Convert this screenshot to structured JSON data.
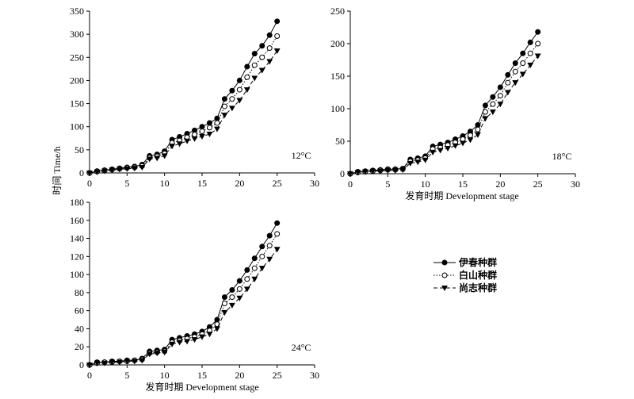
{
  "figure": {
    "ylabel": "时间 Time/h",
    "xlabel": "发育时期 Development stage"
  },
  "legend": [
    {
      "name": "伊春种群",
      "marker": "filled-circle",
      "line": "solid"
    },
    {
      "name": "白山种群",
      "marker": "open-circle",
      "line": "dotted"
    },
    {
      "name": "尚志种群",
      "marker": "filled-triangle-down",
      "line": "dashed"
    }
  ],
  "chart_data": [
    {
      "type": "line",
      "temperature_label": "12°C",
      "xlabel": "",
      "xlim": [
        0,
        30
      ],
      "xticks": [
        0,
        5,
        10,
        15,
        20,
        25,
        30
      ],
      "ylim": [
        0,
        350
      ],
      "yticks": [
        0,
        50,
        100,
        150,
        200,
        250,
        300,
        350
      ],
      "x": [
        0,
        1,
        2,
        3,
        4,
        5,
        6,
        7,
        8,
        9,
        10,
        11,
        12,
        13,
        14,
        15,
        16,
        17,
        18,
        19,
        20,
        21,
        22,
        23,
        24,
        25
      ],
      "series": [
        {
          "name": "伊春种群",
          "values": [
            0,
            4,
            6,
            8,
            10,
            12,
            14,
            18,
            37,
            40,
            47,
            72,
            78,
            85,
            92,
            100,
            108,
            118,
            160,
            178,
            200,
            230,
            258,
            275,
            298,
            328
          ]
        },
        {
          "name": "白山种群",
          "values": [
            0,
            3,
            5,
            7,
            9,
            11,
            12,
            15,
            33,
            36,
            42,
            65,
            70,
            77,
            83,
            90,
            98,
            108,
            144,
            160,
            180,
            207,
            233,
            250,
            270,
            296
          ]
        },
        {
          "name": "尚志种群",
          "values": [
            0,
            2,
            4,
            6,
            8,
            9,
            10,
            12,
            30,
            32,
            37,
            58,
            63,
            69,
            74,
            79,
            84,
            95,
            125,
            140,
            157,
            180,
            205,
            222,
            241,
            264
          ]
        }
      ]
    },
    {
      "type": "line",
      "temperature_label": "18°C",
      "xlabel": "发育时期 Development stage",
      "xlim": [
        0,
        30
      ],
      "xticks": [
        0,
        5,
        10,
        15,
        20,
        25,
        30
      ],
      "ylim": [
        0,
        250
      ],
      "yticks": [
        0,
        50,
        100,
        150,
        200,
        250
      ],
      "x": [
        0,
        1,
        2,
        3,
        4,
        5,
        6,
        7,
        8,
        9,
        10,
        11,
        12,
        13,
        14,
        15,
        16,
        17,
        18,
        19,
        20,
        21,
        22,
        23,
        24,
        25
      ],
      "series": [
        {
          "name": "伊春种群",
          "values": [
            0,
            3,
            4,
            5,
            6,
            7,
            7,
            8,
            22,
            24,
            27,
            42,
            45,
            48,
            53,
            58,
            65,
            75,
            105,
            118,
            133,
            152,
            170,
            185,
            202,
            218
          ]
        },
        {
          "name": "白山种群",
          "values": [
            0,
            2,
            3,
            4,
            5,
            6,
            6,
            7,
            19,
            21,
            24,
            38,
            40,
            44,
            48,
            53,
            59,
            68,
            95,
            107,
            120,
            140,
            157,
            170,
            185,
            200
          ]
        },
        {
          "name": "尚志种群",
          "values": [
            0,
            2,
            3,
            4,
            4,
            5,
            5,
            6,
            16,
            18,
            21,
            33,
            36,
            39,
            43,
            47,
            52,
            60,
            85,
            95,
            107,
            125,
            140,
            153,
            167,
            181
          ]
        }
      ]
    },
    {
      "type": "line",
      "temperature_label": "24°C",
      "xlabel": "发育时期 Development stage",
      "xlim": [
        0,
        30
      ],
      "xticks": [
        0,
        5,
        10,
        15,
        20,
        25,
        30
      ],
      "ylim": [
        0,
        180
      ],
      "yticks": [
        0,
        20,
        40,
        60,
        80,
        100,
        120,
        140,
        160,
        180
      ],
      "x": [
        0,
        1,
        2,
        3,
        4,
        5,
        6,
        7,
        8,
        9,
        10,
        11,
        12,
        13,
        14,
        15,
        16,
        17,
        18,
        19,
        20,
        21,
        22,
        23,
        24,
        25
      ],
      "series": [
        {
          "name": "伊春种群",
          "values": [
            0,
            3,
            3,
            4,
            4,
            5,
            5,
            7,
            15,
            16,
            17,
            28,
            30,
            32,
            34,
            37,
            42,
            50,
            75,
            83,
            93,
            105,
            118,
            131,
            143,
            157
          ]
        },
        {
          "name": "白山种群",
          "values": [
            0,
            2,
            3,
            3,
            4,
            4,
            5,
            6,
            13,
            14,
            15,
            25,
            27,
            29,
            31,
            34,
            38,
            45,
            68,
            75,
            84,
            95,
            107,
            120,
            132,
            145
          ]
        },
        {
          "name": "尚志种群",
          "values": [
            0,
            2,
            2,
            3,
            3,
            4,
            4,
            5,
            12,
            13,
            14,
            23,
            25,
            26,
            28,
            31,
            34,
            40,
            58,
            66,
            74,
            84,
            95,
            107,
            117,
            128
          ]
        }
      ]
    }
  ]
}
